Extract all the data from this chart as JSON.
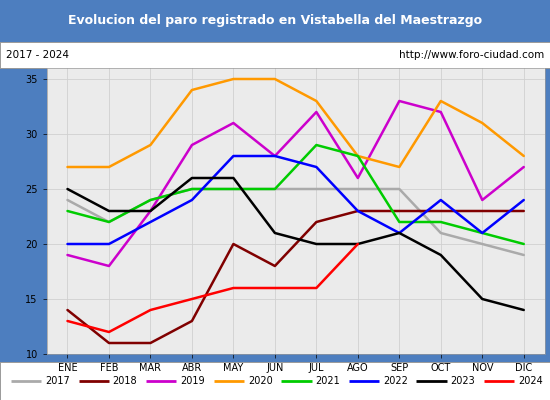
{
  "title": "Evolucion del paro registrado en Vistabella del Maestrazgo",
  "subtitle_left": "2017 - 2024",
  "subtitle_right": "http://www.foro-ciudad.com",
  "title_bg": "#4d7ebf",
  "title_color": "white",
  "months": [
    "ENE",
    "FEB",
    "MAR",
    "ABR",
    "MAY",
    "JUN",
    "JUL",
    "AGO",
    "SEP",
    "OCT",
    "NOV",
    "DIC"
  ],
  "ylim": [
    10,
    36
  ],
  "yticks": [
    10,
    15,
    20,
    25,
    30,
    35
  ],
  "series": {
    "2017": {
      "color": "#aaaaaa",
      "values": [
        24,
        22,
        24,
        25,
        25,
        25,
        25,
        25,
        25,
        21,
        20,
        19
      ]
    },
    "2018": {
      "color": "#800000",
      "values": [
        14,
        11,
        11,
        13,
        20,
        18,
        22,
        23,
        23,
        23,
        23,
        23
      ]
    },
    "2019": {
      "color": "#cc00cc",
      "values": [
        19,
        18,
        23,
        29,
        31,
        28,
        32,
        26,
        33,
        32,
        24,
        27
      ]
    },
    "2020": {
      "color": "#ff9900",
      "values": [
        27,
        27,
        29,
        34,
        35,
        35,
        33,
        28,
        27,
        33,
        31,
        28
      ]
    },
    "2021": {
      "color": "#00cc00",
      "values": [
        23,
        22,
        24,
        25,
        25,
        25,
        29,
        28,
        22,
        22,
        21,
        20
      ]
    },
    "2022": {
      "color": "#0000ff",
      "values": [
        20,
        20,
        22,
        24,
        28,
        28,
        27,
        23,
        21,
        24,
        21,
        24
      ]
    },
    "2023": {
      "color": "#000000",
      "values": [
        25,
        23,
        23,
        26,
        26,
        21,
        20,
        20,
        21,
        19,
        15,
        14
      ]
    },
    "2024": {
      "color": "#ff0000",
      "values": [
        13,
        12,
        14,
        15,
        16,
        16,
        16,
        20,
        null,
        null,
        null,
        null
      ]
    }
  },
  "legend_order": [
    "2017",
    "2018",
    "2019",
    "2020",
    "2021",
    "2022",
    "2023",
    "2024"
  ],
  "grid_color": "#d0d0d0",
  "plot_bg": "#ebebeb"
}
